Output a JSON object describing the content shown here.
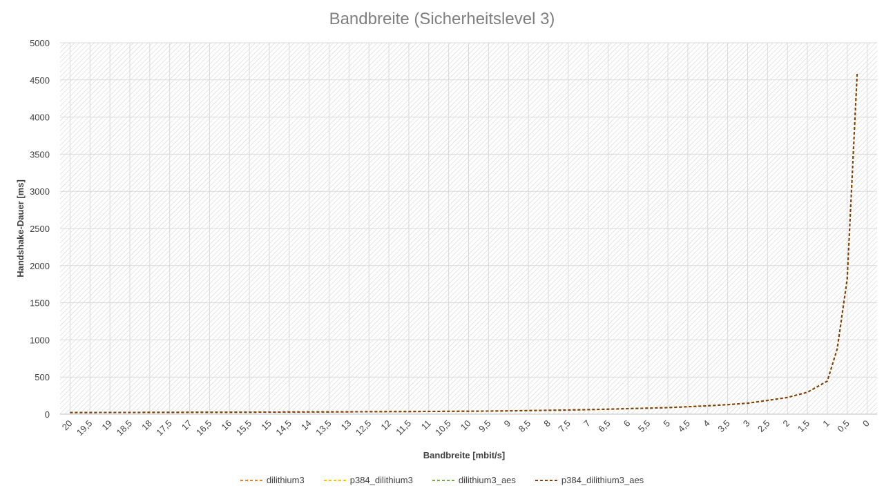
{
  "chart_data": {
    "type": "line",
    "title": "Bandbreite (Sicherheitslevel 3)",
    "xlabel": "Bandbreite [mbit/s]",
    "ylabel": "Handshake-Dauer [ms]",
    "x_reversed": true,
    "xlim": [
      20,
      0
    ],
    "ylim": [
      0,
      5000
    ],
    "y_ticks": [
      "0",
      "500",
      "1000",
      "1500",
      "2000",
      "2500",
      "3000",
      "3500",
      "4000",
      "4500",
      "5000"
    ],
    "x_tick_labels": [
      "20",
      "19,5",
      "19",
      "18,5",
      "18",
      "17,5",
      "17",
      "16,5",
      "16",
      "15,5",
      "15",
      "14,5",
      "14",
      "13,5",
      "13",
      "12,5",
      "12",
      "11,5",
      "11",
      "10,5",
      "10",
      "9,5",
      "9",
      "8,5",
      "8",
      "7,5",
      "7",
      "6,5",
      "6",
      "5,5",
      "5",
      "4,5",
      "4",
      "3,5",
      "3",
      "2,5",
      "2",
      "1,5",
      "1",
      "0,5",
      "0"
    ],
    "grid": true,
    "legend_position": "bottom",
    "x": [
      20,
      19.5,
      19,
      18.5,
      18,
      17.5,
      17,
      16.5,
      16,
      15.5,
      15,
      14.5,
      14,
      13.5,
      13,
      12.5,
      12,
      11.5,
      11,
      10.5,
      10,
      9.5,
      9,
      8.5,
      8,
      7.5,
      7,
      6.5,
      6,
      5.5,
      5,
      4.5,
      4,
      3.5,
      3,
      2.5,
      2,
      1.5,
      1,
      0.75,
      0.5,
      0.25
    ],
    "series": [
      {
        "name": "dilithium3",
        "color": "#ed7d31",
        "dash": "4,3",
        "values": [
          22,
          22,
          23,
          23,
          24,
          24,
          25,
          26,
          26,
          27,
          28,
          29,
          30,
          31,
          32,
          33,
          34,
          35,
          37,
          38,
          40,
          42,
          45,
          48,
          52,
          56,
          61,
          67,
          74,
          81,
          88,
          100,
          112,
          128,
          148,
          185,
          225,
          295,
          445,
          880,
          1820,
          4580
        ]
      },
      {
        "name": "p384_dilithium3",
        "color": "#ffc000",
        "dash": "4,3",
        "values": [
          22,
          22,
          23,
          23,
          24,
          24,
          25,
          26,
          26,
          27,
          28,
          29,
          30,
          31,
          32,
          33,
          34,
          35,
          37,
          38,
          40,
          42,
          45,
          48,
          52,
          56,
          61,
          67,
          74,
          81,
          88,
          100,
          112,
          128,
          148,
          185,
          225,
          295,
          445,
          880,
          1820,
          4580
        ]
      },
      {
        "name": "dilithium3_aes",
        "color": "#70ad47",
        "dash": "4,3",
        "values": [
          22,
          22,
          23,
          23,
          24,
          24,
          25,
          26,
          26,
          27,
          28,
          29,
          30,
          31,
          32,
          33,
          34,
          35,
          37,
          38,
          40,
          42,
          45,
          48,
          52,
          56,
          61,
          67,
          74,
          81,
          88,
          100,
          112,
          128,
          148,
          185,
          225,
          295,
          445,
          880,
          1820,
          4580
        ]
      },
      {
        "name": "p384_dilithium3_aes",
        "color": "#843c0c",
        "dash": "4,3",
        "values": [
          22,
          22,
          23,
          23,
          24,
          24,
          25,
          26,
          26,
          27,
          28,
          29,
          30,
          31,
          32,
          33,
          34,
          35,
          37,
          38,
          40,
          42,
          45,
          48,
          52,
          56,
          61,
          67,
          74,
          81,
          88,
          100,
          112,
          128,
          148,
          185,
          225,
          295,
          445,
          880,
          1820,
          4580
        ]
      }
    ]
  }
}
